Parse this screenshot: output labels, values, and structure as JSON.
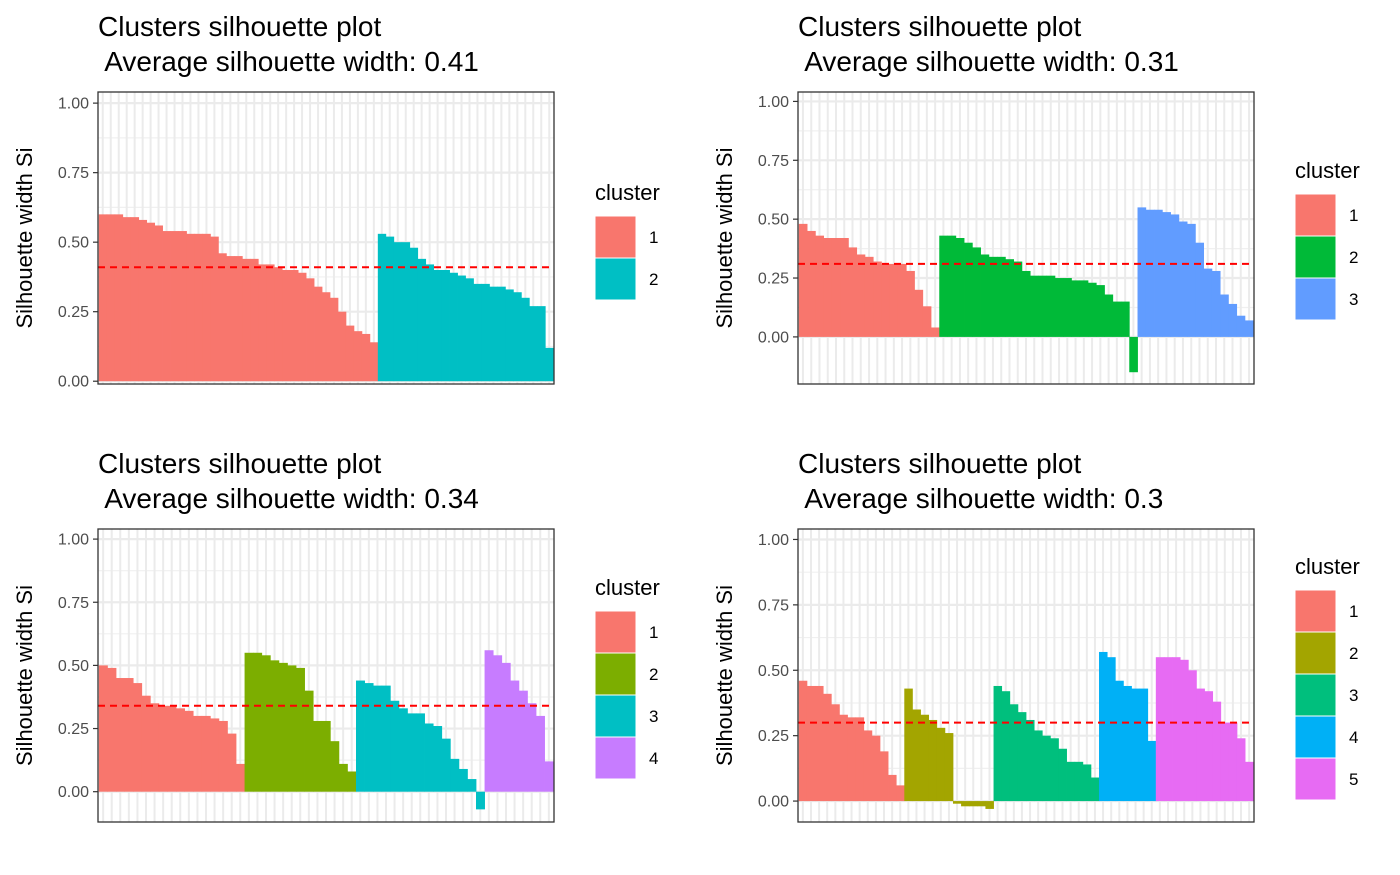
{
  "chart_data": [
    {
      "type": "bar",
      "title_line1": "Clusters silhouette plot",
      "title_line2": " Average silhouette width: 0.41",
      "xlabel": "",
      "ylabel": "Silhouette width Si",
      "ylim": [
        -0.01,
        1.04
      ],
      "yticks": [
        0.0,
        0.25,
        0.5,
        0.75,
        1.0
      ],
      "ytick_labels": [
        "0.00",
        "0.25",
        "0.50",
        "0.75",
        "1.00"
      ],
      "average_line": 0.41,
      "legend_title": "cluster",
      "legend_position": "right",
      "grid": true,
      "series": [
        {
          "name": "1",
          "color": "#F8766D",
          "values": [
            0.6,
            0.6,
            0.6,
            0.59,
            0.59,
            0.58,
            0.57,
            0.56,
            0.54,
            0.54,
            0.54,
            0.53,
            0.53,
            0.53,
            0.52,
            0.46,
            0.45,
            0.45,
            0.44,
            0.44,
            0.42,
            0.42,
            0.41,
            0.4,
            0.4,
            0.39,
            0.37,
            0.34,
            0.32,
            0.3,
            0.25,
            0.2,
            0.18,
            0.17,
            0.14
          ]
        },
        {
          "name": "2",
          "color": "#00BFC4",
          "values": [
            0.53,
            0.52,
            0.5,
            0.5,
            0.48,
            0.44,
            0.42,
            0.4,
            0.4,
            0.39,
            0.38,
            0.37,
            0.35,
            0.35,
            0.34,
            0.34,
            0.33,
            0.32,
            0.3,
            0.27,
            0.27,
            0.12
          ]
        }
      ]
    },
    {
      "type": "bar",
      "title_line1": "Clusters silhouette plot",
      "title_line2": " Average silhouette width: 0.31",
      "xlabel": "",
      "ylabel": "Silhouette width Si",
      "ylim": [
        -0.2,
        1.04
      ],
      "yticks": [
        0.0,
        0.25,
        0.5,
        0.75,
        1.0
      ],
      "ytick_labels": [
        "0.00",
        "0.25",
        "0.50",
        "0.75",
        "1.00"
      ],
      "average_line": 0.31,
      "legend_title": "cluster",
      "legend_position": "right",
      "grid": true,
      "series": [
        {
          "name": "1",
          "color": "#F8766D",
          "values": [
            0.48,
            0.45,
            0.43,
            0.42,
            0.42,
            0.42,
            0.38,
            0.35,
            0.34,
            0.32,
            0.31,
            0.31,
            0.31,
            0.28,
            0.2,
            0.13,
            0.04
          ]
        },
        {
          "name": "2",
          "color": "#00BA38",
          "values": [
            0.43,
            0.43,
            0.42,
            0.4,
            0.38,
            0.35,
            0.34,
            0.34,
            0.33,
            0.32,
            0.28,
            0.26,
            0.26,
            0.26,
            0.25,
            0.25,
            0.24,
            0.24,
            0.23,
            0.22,
            0.18,
            0.15,
            0.15,
            -0.15
          ]
        },
        {
          "name": "3",
          "color": "#619CFF",
          "values": [
            0.55,
            0.54,
            0.54,
            0.53,
            0.52,
            0.49,
            0.48,
            0.4,
            0.29,
            0.28,
            0.18,
            0.14,
            0.09,
            0.07
          ]
        }
      ]
    },
    {
      "type": "bar",
      "title_line1": "Clusters silhouette plot",
      "title_line2": " Average silhouette width: 0.34",
      "xlabel": "",
      "ylabel": "Silhouette width Si",
      "ylim": [
        -0.12,
        1.04
      ],
      "yticks": [
        0.0,
        0.25,
        0.5,
        0.75,
        1.0
      ],
      "ytick_labels": [
        "0.00",
        "0.25",
        "0.50",
        "0.75",
        "1.00"
      ],
      "average_line": 0.34,
      "legend_title": "cluster",
      "legend_position": "right",
      "grid": true,
      "series": [
        {
          "name": "1",
          "color": "#F8766D",
          "values": [
            0.5,
            0.49,
            0.45,
            0.45,
            0.43,
            0.38,
            0.35,
            0.34,
            0.34,
            0.33,
            0.32,
            0.3,
            0.3,
            0.29,
            0.28,
            0.23,
            0.11
          ]
        },
        {
          "name": "2",
          "color": "#7CAE00",
          "values": [
            0.55,
            0.55,
            0.54,
            0.52,
            0.51,
            0.5,
            0.49,
            0.4,
            0.28,
            0.28,
            0.2,
            0.11,
            0.08
          ]
        },
        {
          "name": "3",
          "color": "#00BFC4",
          "values": [
            0.44,
            0.43,
            0.42,
            0.42,
            0.36,
            0.33,
            0.31,
            0.31,
            0.27,
            0.26,
            0.21,
            0.13,
            0.09,
            0.05,
            -0.07
          ]
        },
        {
          "name": "4",
          "color": "#C77CFF",
          "values": [
            0.56,
            0.54,
            0.51,
            0.44,
            0.4,
            0.35,
            0.3,
            0.12
          ]
        }
      ]
    },
    {
      "type": "bar",
      "title_line1": "Clusters silhouette plot",
      "title_line2": " Average silhouette width: 0.3",
      "xlabel": "",
      "ylabel": "Silhouette width Si",
      "ylim": [
        -0.08,
        1.04
      ],
      "yticks": [
        0.0,
        0.25,
        0.5,
        0.75,
        1.0
      ],
      "ytick_labels": [
        "0.00",
        "0.25",
        "0.50",
        "0.75",
        "1.00"
      ],
      "average_line": 0.3,
      "legend_title": "cluster",
      "legend_position": "right",
      "grid": true,
      "series": [
        {
          "name": "1",
          "color": "#F8766D",
          "values": [
            0.46,
            0.44,
            0.44,
            0.41,
            0.37,
            0.33,
            0.32,
            0.32,
            0.27,
            0.25,
            0.19,
            0.1,
            0.06
          ]
        },
        {
          "name": "2",
          "color": "#A3A500",
          "values": [
            0.43,
            0.35,
            0.33,
            0.31,
            0.28,
            0.26,
            -0.01,
            -0.02,
            -0.02,
            -0.02,
            -0.03
          ]
        },
        {
          "name": "3",
          "color": "#00BF7D",
          "values": [
            0.44,
            0.42,
            0.37,
            0.34,
            0.31,
            0.27,
            0.25,
            0.24,
            0.2,
            0.15,
            0.15,
            0.14,
            0.09
          ]
        },
        {
          "name": "4",
          "color": "#00B0F6",
          "values": [
            0.57,
            0.55,
            0.46,
            0.44,
            0.43,
            0.43,
            0.23
          ]
        },
        {
          "name": "5",
          "color": "#E76BF3",
          "values": [
            0.55,
            0.55,
            0.55,
            0.54,
            0.5,
            0.43,
            0.42,
            0.38,
            0.3,
            0.3,
            0.24,
            0.15
          ]
        }
      ]
    }
  ]
}
